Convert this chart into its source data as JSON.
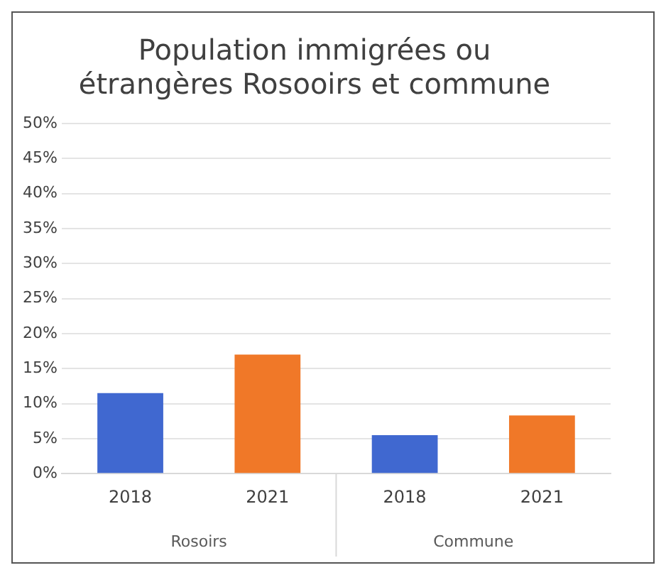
{
  "chart_data": {
    "type": "bar",
    "title": "Population immigrées ou\nétrangères Rosooirs et commune",
    "categories": [
      "2018",
      "2021",
      "2018",
      "2021"
    ],
    "values": [
      11.5,
      17,
      5.5,
      8.3
    ],
    "colors": [
      "#4068d0",
      "#f07828",
      "#4068d0",
      "#f07828"
    ],
    "annotations": [
      "Rosoirs",
      "Commune"
    ],
    "ylim": [
      0,
      50
    ],
    "yticks": [
      {
        "value": 0,
        "label": "0%"
      },
      {
        "value": 5,
        "label": "5%"
      },
      {
        "value": 10,
        "label": "10%"
      },
      {
        "value": 15,
        "label": "15%"
      },
      {
        "value": 20,
        "label": "20%"
      },
      {
        "value": 25,
        "label": "25%"
      },
      {
        "value": 30,
        "label": "30%"
      },
      {
        "value": 35,
        "label": "35%"
      },
      {
        "value": 40,
        "label": "40%"
      },
      {
        "value": 45,
        "label": "45%"
      },
      {
        "value": 50,
        "label": "50%"
      }
    ],
    "grid": "y"
  }
}
